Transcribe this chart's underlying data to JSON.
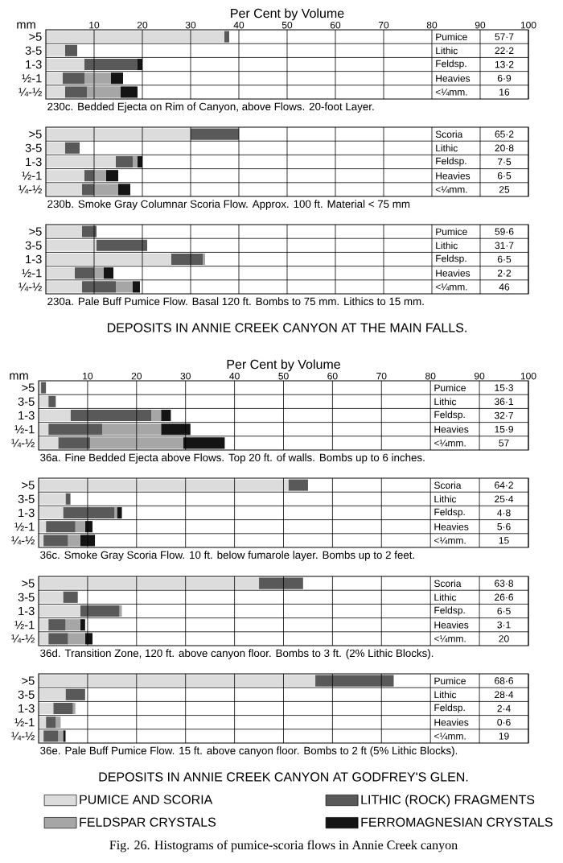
{
  "chart_data": [
    {
      "type": "bar",
      "orientation": "horizontal",
      "stacked": true,
      "title": "230c. Bedded Ejecta on Rim of Canyon, above Flows. 20-foot Layer.",
      "xlabel": "Per Cent by Volume",
      "ylabel": "mm",
      "categories": [
        ">5",
        "3-5",
        "1-3",
        "½-1",
        "¼-½"
      ],
      "series": [
        {
          "color": "#dcdcdc",
          "values": [
            37,
            4,
            8,
            3.5,
            4
          ]
        },
        {
          "color": "#595959",
          "values": [
            1,
            2.5,
            11,
            4.5,
            4.5
          ]
        },
        {
          "color": "#a6a6a6",
          "values": [
            0,
            0,
            0,
            5.5,
            7
          ]
        },
        {
          "color": "#141414",
          "values": [
            0,
            0,
            1,
            2.5,
            3.5
          ]
        }
      ],
      "xlim": [
        0,
        100
      ],
      "xticks": [
        10,
        20,
        30,
        40,
        50,
        60,
        70,
        80,
        90,
        100
      ],
      "grid": true,
      "annotations": [
        "Pumice",
        "57·7",
        "Lithic",
        "22·2",
        "Feldsp.",
        "13·2",
        "Heavies",
        "6·9",
        "<¼mm.",
        "16"
      ]
    },
    {
      "type": "bar",
      "orientation": "horizontal",
      "stacked": true,
      "title": "230b. Smoke Gray Columnar Scoria Flow. Approx. 100 ft. Material < 75 mm",
      "categories": [
        ">5",
        "3-5",
        "1-3",
        "½-1",
        "¼-½"
      ],
      "series": [
        {
          "color": "#dcdcdc",
          "values": [
            30,
            4,
            14.5,
            8,
            7.5
          ]
        },
        {
          "color": "#595959",
          "values": [
            10,
            3,
            3.5,
            2,
            2.5
          ]
        },
        {
          "color": "#a6a6a6",
          "values": [
            0,
            0,
            1,
            2.5,
            5
          ]
        },
        {
          "color": "#141414",
          "values": [
            0,
            0,
            1,
            2.5,
            2.5
          ]
        }
      ],
      "xlim": [
        0,
        100
      ],
      "xticks": [
        10,
        20,
        30,
        40,
        50,
        60,
        70,
        80,
        90,
        100
      ],
      "grid": true,
      "tick_labels": "y",
      "annotations": [
        "Scoria",
        "65·2",
        "Lithic",
        "20·8",
        "Feldsp.",
        "7·5",
        "Heavies",
        "6·5",
        "<¼mm.",
        "25"
      ]
    },
    {
      "type": "bar",
      "orientation": "horizontal",
      "stacked": true,
      "title": "230a. Pale Buff Pumice Flow. Basal 120 ft. Bombs to 75 mm. Lithics to 15 mm.",
      "categories": [
        ">5",
        "3-5",
        "1-3",
        "½-1",
        "¼-½"
      ],
      "series": [
        {
          "color": "#dcdcdc",
          "values": [
            7.5,
            10.5,
            26,
            6,
            7.5
          ]
        },
        {
          "color": "#595959",
          "values": [
            3,
            10.5,
            6.5,
            4,
            7
          ]
        },
        {
          "color": "#a6a6a6",
          "values": [
            0,
            0,
            0.5,
            2,
            3.5
          ]
        },
        {
          "color": "#141414",
          "values": [
            0,
            0,
            0,
            2,
            1.5
          ]
        }
      ],
      "xlim": [
        0,
        100
      ],
      "xticks": [
        10,
        20,
        30,
        40,
        50,
        60,
        70,
        80,
        90,
        100
      ],
      "grid": true,
      "tick_labels": "y",
      "annotations": [
        "Pumice",
        "59·6",
        "Lithic",
        "31·7",
        "Feldsp.",
        "6·5",
        "Heavies",
        "2·2",
        "<¼mm.",
        "46",
        "DEPOSITS IN ANNIE CREEK CANYON AT THE MAIN FALLS."
      ]
    },
    {
      "type": "bar",
      "orientation": "horizontal",
      "stacked": true,
      "title": "36a. Fine Bedded Ejecta above Flows. Top 20 ft. of walls. Bombs up to 6 inches.",
      "xlabel": "Per Cent by Volume",
      "ylabel": "mm",
      "categories": [
        ">5",
        "3-5",
        "1-3",
        "½-1",
        "¼-½"
      ],
      "series": [
        {
          "color": "#dcdcdc",
          "values": [
            0.5,
            2,
            6.5,
            2,
            4
          ]
        },
        {
          "color": "#595959",
          "values": [
            1,
            1.5,
            16.5,
            11,
            6.5
          ]
        },
        {
          "color": "#a6a6a6",
          "values": [
            0,
            0,
            2,
            12,
            19
          ]
        },
        {
          "color": "#141414",
          "values": [
            0,
            0,
            2,
            6,
            8.5
          ]
        }
      ],
      "xlim": [
        0,
        100
      ],
      "xticks": [
        10,
        20,
        30,
        40,
        50,
        60,
        70,
        80,
        90,
        100
      ],
      "grid": true,
      "annotations": [
        "Pumice",
        "15·3",
        "Lithic",
        "36·1",
        "Feldsp.",
        "32·7",
        "Heavies",
        "15·9",
        "<¼mm.",
        "57"
      ]
    },
    {
      "type": "bar",
      "orientation": "horizontal",
      "stacked": true,
      "title": "36c. Smoke Gray Scoria Flow. 10 ft. below fumarole layer. Bombs up to 2 feet.",
      "categories": [
        ">5",
        "3-5",
        "1-3",
        "½-1",
        "¼-½"
      ],
      "series": [
        {
          "color": "#dcdcdc",
          "values": [
            51,
            5.5,
            5,
            1.5,
            1
          ]
        },
        {
          "color": "#595959",
          "values": [
            4,
            1,
            10.5,
            6,
            5
          ]
        },
        {
          "color": "#a6a6a6",
          "values": [
            0,
            0,
            0.5,
            2,
            2.5
          ]
        },
        {
          "color": "#141414",
          "values": [
            0,
            0,
            1,
            1.5,
            3
          ]
        }
      ],
      "xlim": [
        0,
        100
      ],
      "xticks": [
        10,
        20,
        30,
        40,
        50,
        60,
        70,
        80,
        90,
        100
      ],
      "grid": true,
      "tick_labels": "y",
      "annotations": [
        "Scoria",
        "64·2",
        "Lithic",
        "25·4",
        "Feldsp.",
        "4·8",
        "Heavies",
        "5·6",
        "<¼mm.",
        "15"
      ]
    },
    {
      "type": "bar",
      "orientation": "horizontal",
      "stacked": true,
      "title": "36d. Transition Zone, 120 ft. above canyon floor. Bombs to 3 ft. (2% Lithic Blocks).",
      "categories": [
        ">5",
        "3-5",
        "1-3",
        "½-1",
        "¼-½"
      ],
      "series": [
        {
          "color": "#dcdcdc",
          "values": [
            45,
            5,
            8.5,
            2,
            2
          ]
        },
        {
          "color": "#595959",
          "values": [
            9,
            3,
            8,
            3.5,
            4
          ]
        },
        {
          "color": "#a6a6a6",
          "values": [
            0,
            0,
            0.5,
            3,
            3.5
          ]
        },
        {
          "color": "#141414",
          "values": [
            0,
            0,
            0,
            1,
            1.5
          ]
        }
      ],
      "xlim": [
        0,
        100
      ],
      "xticks": [
        10,
        20,
        30,
        40,
        50,
        60,
        70,
        80,
        90,
        100
      ],
      "grid": true,
      "tick_labels": "y",
      "annotations": [
        "Scoria",
        "63·8",
        "Lithic",
        "26·6",
        "Feldsp.",
        "6·5",
        "Heavies",
        "3·1",
        "<¼mm.",
        "20"
      ]
    },
    {
      "type": "bar",
      "orientation": "horizontal",
      "stacked": true,
      "title": "36e. Pale Buff Pumice Flow. 15 ft. above canyon floor. Bombs to 2 ft (5% Lithic Blocks).",
      "categories": [
        ">5",
        "3-5",
        "1-3",
        "½-1",
        "¼-½"
      ],
      "series": [
        {
          "name": "PUMICE AND SCORIA",
          "color": "#dcdcdc",
          "values": [
            56.5,
            5.5,
            3,
            1.5,
            1
          ]
        },
        {
          "name": "LITHIC (ROCK) FRAGMENTS",
          "color": "#595959",
          "values": [
            16,
            4,
            4,
            2,
            3
          ]
        },
        {
          "name": "FELDSPAR CRYSTALS",
          "color": "#a6a6a6",
          "values": [
            0,
            0,
            0.5,
            1,
            1
          ]
        },
        {
          "name": "FERROMAGNESIAN CRYSTALS",
          "color": "#141414",
          "values": [
            0,
            0,
            0,
            0,
            0.5
          ]
        }
      ],
      "xlim": [
        0,
        100
      ],
      "xticks": [
        10,
        20,
        30,
        40,
        50,
        60,
        70,
        80,
        90,
        100
      ],
      "grid": true,
      "tick_labels": "y",
      "legend": "bottom",
      "annotations": [
        "Pumice",
        "68·6",
        "Lithic",
        "28·4",
        "Feldsp.",
        "2·4",
        "Heavies",
        "0·6",
        "<¼mm.",
        "19",
        "DEPOSITS IN ANNIE CREEK CANYON AT GODFREY'S GLEN.",
        "Fig. 26. Histograms of pumice-scoria flows in Annie Creek canyon"
      ]
    }
  ]
}
